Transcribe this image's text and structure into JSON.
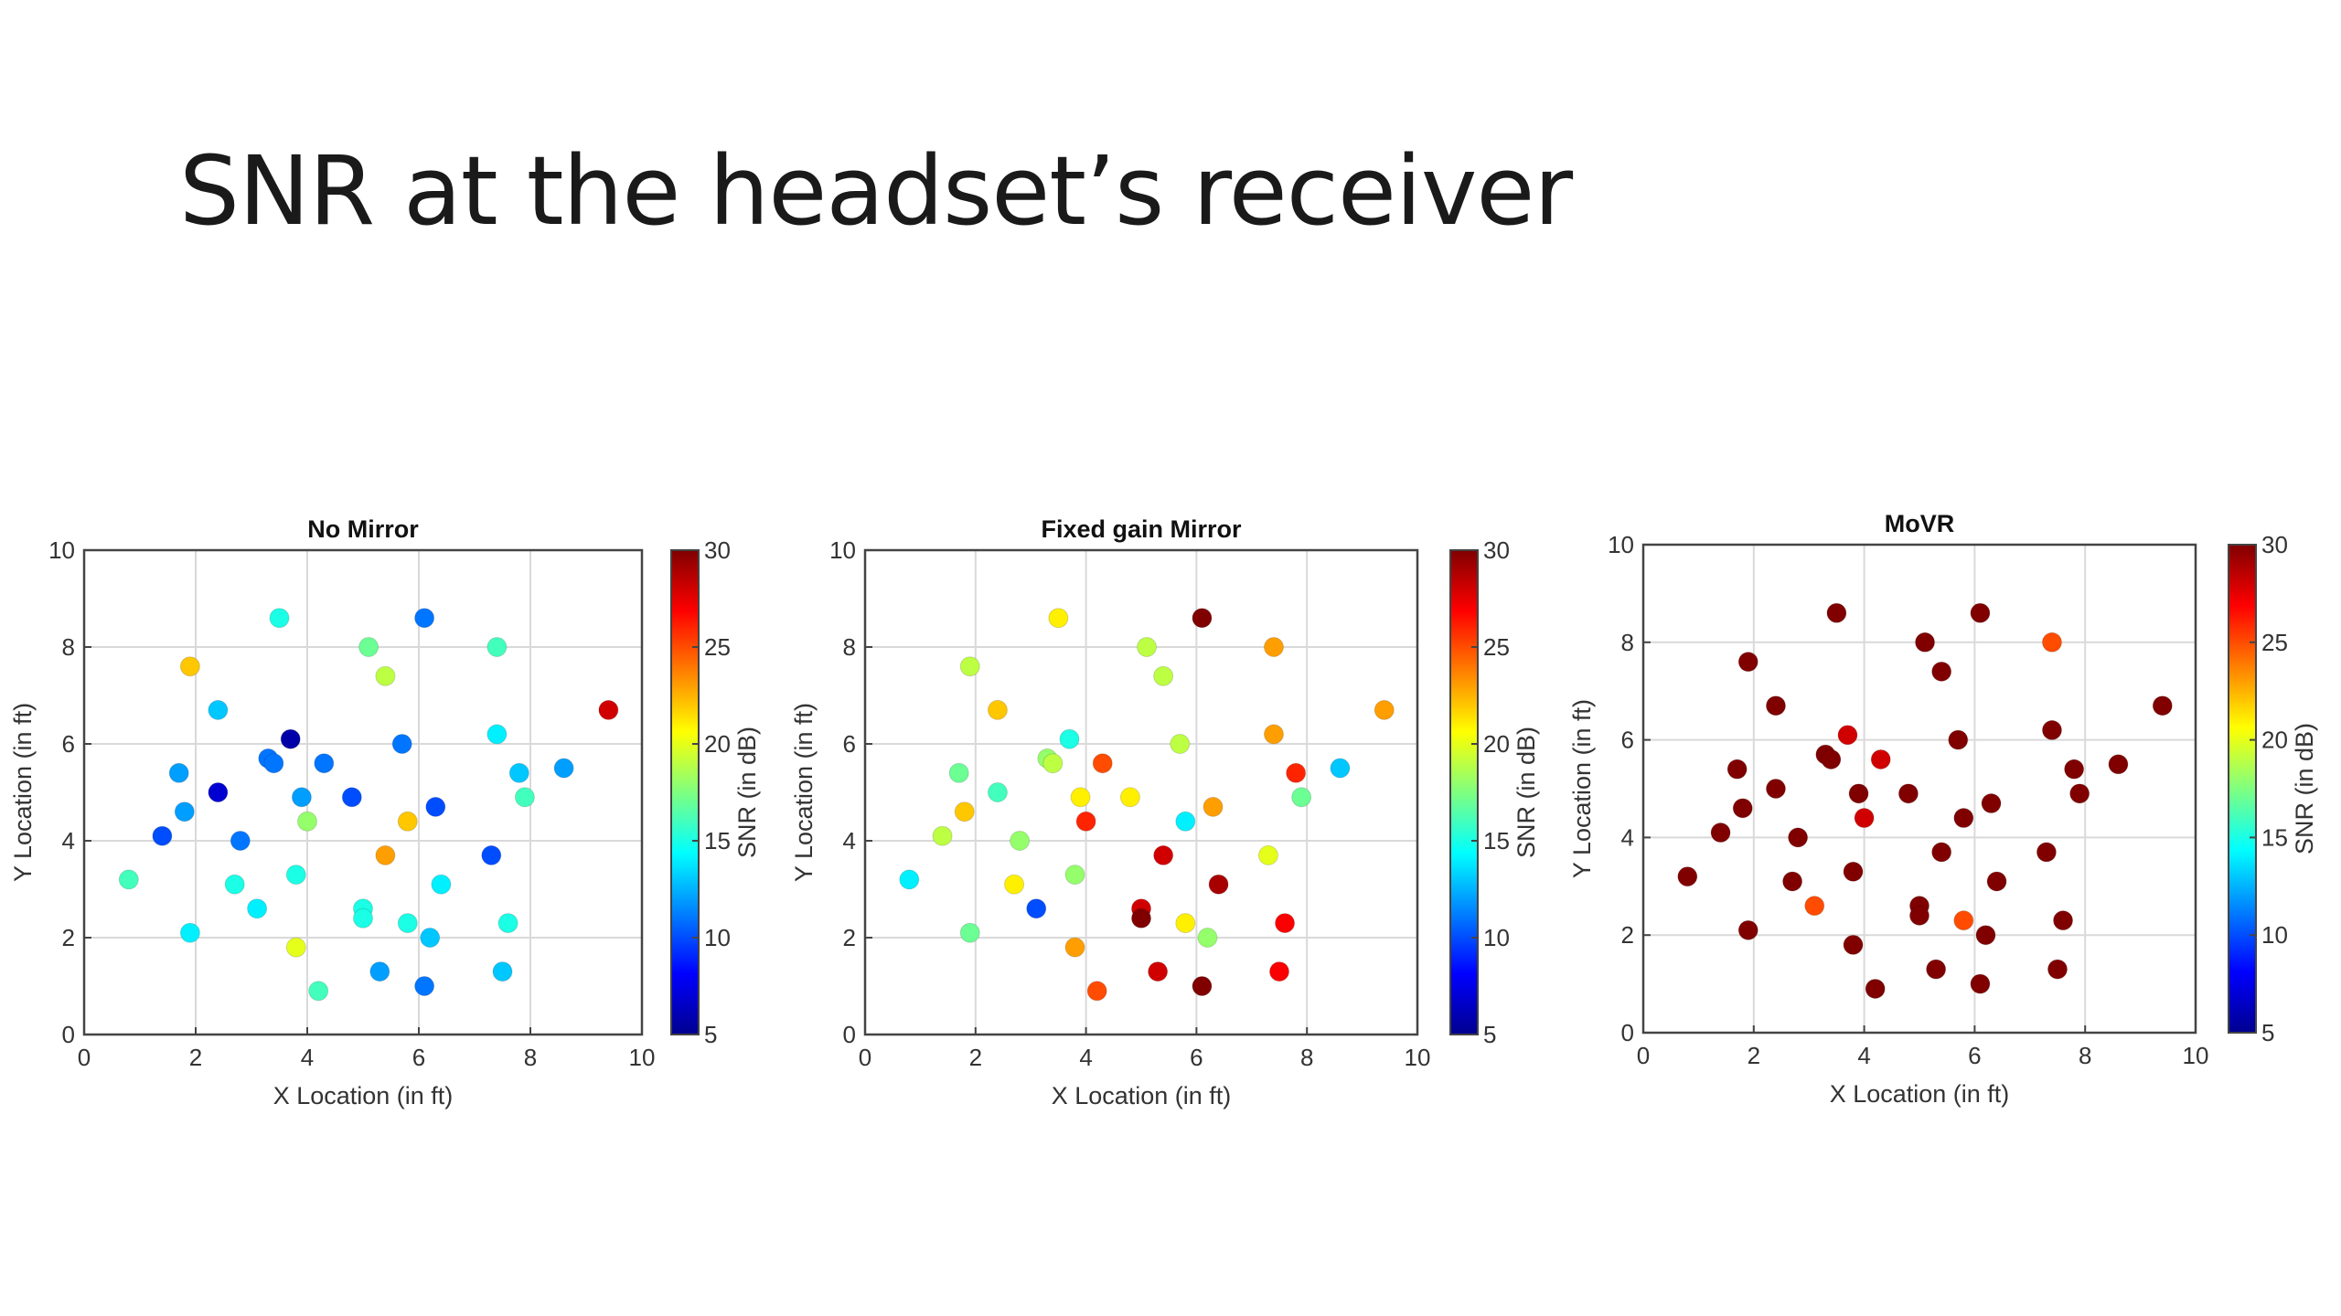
{
  "slide": {
    "title": "SNR at the headset’s receiver"
  },
  "colormap": "jet",
  "chart_data": [
    {
      "type": "scatter",
      "title": "No Mirror",
      "xlabel": "X Location (in ft)",
      "ylabel": "Y Location (in ft)",
      "colorbar_label": "SNR (in dB)",
      "xlim": [
        0,
        10
      ],
      "ylim": [
        0,
        10
      ],
      "clim": [
        5,
        30
      ],
      "xticks": [
        0,
        2,
        4,
        6,
        8,
        10
      ],
      "yticks": [
        0,
        2,
        4,
        6,
        8,
        10
      ],
      "cticks": [
        5,
        10,
        15,
        20,
        25,
        30
      ],
      "grid": true,
      "points": [
        {
          "x": 0.8,
          "y": 3.2,
          "snr": 16
        },
        {
          "x": 1.4,
          "y": 4.1,
          "snr": 10
        },
        {
          "x": 1.7,
          "y": 5.4,
          "snr": 12
        },
        {
          "x": 1.8,
          "y": 4.6,
          "snr": 12
        },
        {
          "x": 1.9,
          "y": 2.1,
          "snr": 14
        },
        {
          "x": 1.9,
          "y": 7.6,
          "snr": 22
        },
        {
          "x": 2.4,
          "y": 6.7,
          "snr": 13
        },
        {
          "x": 2.4,
          "y": 5.0,
          "snr": 7
        },
        {
          "x": 2.7,
          "y": 3.1,
          "snr": 15
        },
        {
          "x": 2.8,
          "y": 4.0,
          "snr": 11
        },
        {
          "x": 3.1,
          "y": 2.6,
          "snr": 14
        },
        {
          "x": 3.3,
          "y": 5.7,
          "snr": 11
        },
        {
          "x": 3.4,
          "y": 5.6,
          "snr": 11
        },
        {
          "x": 3.5,
          "y": 8.6,
          "snr": 15
        },
        {
          "x": 3.7,
          "y": 6.1,
          "snr": 6
        },
        {
          "x": 3.8,
          "y": 3.3,
          "snr": 15
        },
        {
          "x": 3.8,
          "y": 1.8,
          "snr": 20
        },
        {
          "x": 3.9,
          "y": 4.9,
          "snr": 12
        },
        {
          "x": 4.0,
          "y": 4.4,
          "snr": 18
        },
        {
          "x": 4.2,
          "y": 0.9,
          "snr": 16
        },
        {
          "x": 4.3,
          "y": 5.6,
          "snr": 11
        },
        {
          "x": 4.8,
          "y": 4.9,
          "snr": 10
        },
        {
          "x": 5.0,
          "y": 2.6,
          "snr": 15
        },
        {
          "x": 5.0,
          "y": 2.4,
          "snr": 15
        },
        {
          "x": 5.1,
          "y": 8.0,
          "snr": 17
        },
        {
          "x": 5.3,
          "y": 1.3,
          "snr": 12
        },
        {
          "x": 5.4,
          "y": 7.4,
          "snr": 19
        },
        {
          "x": 5.4,
          "y": 3.7,
          "snr": 23
        },
        {
          "x": 5.7,
          "y": 6.0,
          "snr": 11
        },
        {
          "x": 5.8,
          "y": 2.3,
          "snr": 15
        },
        {
          "x": 5.8,
          "y": 4.4,
          "snr": 22
        },
        {
          "x": 6.1,
          "y": 8.6,
          "snr": 11
        },
        {
          "x": 6.1,
          "y": 1.0,
          "snr": 11
        },
        {
          "x": 6.2,
          "y": 2.0,
          "snr": 13
        },
        {
          "x": 6.3,
          "y": 4.7,
          "snr": 10
        },
        {
          "x": 6.4,
          "y": 3.1,
          "snr": 14
        },
        {
          "x": 7.3,
          "y": 3.7,
          "snr": 10
        },
        {
          "x": 7.4,
          "y": 6.2,
          "snr": 14
        },
        {
          "x": 7.4,
          "y": 8.0,
          "snr": 16
        },
        {
          "x": 7.5,
          "y": 1.3,
          "snr": 13
        },
        {
          "x": 7.6,
          "y": 2.3,
          "snr": 15
        },
        {
          "x": 7.8,
          "y": 5.4,
          "snr": 13
        },
        {
          "x": 7.9,
          "y": 4.9,
          "snr": 16
        },
        {
          "x": 8.6,
          "y": 5.5,
          "snr": 12
        },
        {
          "x": 9.4,
          "y": 6.7,
          "snr": 28
        }
      ]
    },
    {
      "type": "scatter",
      "title": "Fixed gain Mirror",
      "xlabel": "X Location (in ft)",
      "ylabel": "Y Location (in ft)",
      "colorbar_label": "SNR (in dB)",
      "xlim": [
        0,
        10
      ],
      "ylim": [
        0,
        10
      ],
      "clim": [
        5,
        30
      ],
      "xticks": [
        0,
        2,
        4,
        6,
        8,
        10
      ],
      "yticks": [
        0,
        2,
        4,
        6,
        8,
        10
      ],
      "cticks": [
        5,
        10,
        15,
        20,
        25,
        30
      ],
      "grid": true,
      "points": [
        {
          "x": 0.8,
          "y": 3.2,
          "snr": 14
        },
        {
          "x": 1.4,
          "y": 4.1,
          "snr": 19
        },
        {
          "x": 1.7,
          "y": 5.4,
          "snr": 17
        },
        {
          "x": 1.8,
          "y": 4.6,
          "snr": 22
        },
        {
          "x": 1.9,
          "y": 2.1,
          "snr": 17
        },
        {
          "x": 1.9,
          "y": 7.6,
          "snr": 19
        },
        {
          "x": 2.4,
          "y": 6.7,
          "snr": 22
        },
        {
          "x": 2.4,
          "y": 5.0,
          "snr": 16
        },
        {
          "x": 2.7,
          "y": 3.1,
          "snr": 21
        },
        {
          "x": 2.8,
          "y": 4.0,
          "snr": 18
        },
        {
          "x": 3.1,
          "y": 2.6,
          "snr": 10
        },
        {
          "x": 3.3,
          "y": 5.7,
          "snr": 18
        },
        {
          "x": 3.4,
          "y": 5.6,
          "snr": 19
        },
        {
          "x": 3.5,
          "y": 8.6,
          "snr": 21
        },
        {
          "x": 3.7,
          "y": 6.1,
          "snr": 15
        },
        {
          "x": 3.8,
          "y": 3.3,
          "snr": 18
        },
        {
          "x": 3.8,
          "y": 1.8,
          "snr": 23
        },
        {
          "x": 3.9,
          "y": 4.9,
          "snr": 21
        },
        {
          "x": 4.0,
          "y": 4.4,
          "snr": 26
        },
        {
          "x": 4.2,
          "y": 0.9,
          "snr": 25
        },
        {
          "x": 4.3,
          "y": 5.6,
          "snr": 25
        },
        {
          "x": 4.8,
          "y": 4.9,
          "snr": 21
        },
        {
          "x": 5.0,
          "y": 2.6,
          "snr": 28
        },
        {
          "x": 5.0,
          "y": 2.4,
          "snr": 30
        },
        {
          "x": 5.1,
          "y": 8.0,
          "snr": 19
        },
        {
          "x": 5.3,
          "y": 1.3,
          "snr": 28
        },
        {
          "x": 5.4,
          "y": 7.4,
          "snr": 19
        },
        {
          "x": 5.4,
          "y": 3.7,
          "snr": 28
        },
        {
          "x": 5.7,
          "y": 6.0,
          "snr": 19
        },
        {
          "x": 5.8,
          "y": 2.3,
          "snr": 21
        },
        {
          "x": 5.8,
          "y": 4.4,
          "snr": 14
        },
        {
          "x": 6.1,
          "y": 8.6,
          "snr": 30
        },
        {
          "x": 6.1,
          "y": 1.0,
          "snr": 30
        },
        {
          "x": 6.2,
          "y": 2.0,
          "snr": 18
        },
        {
          "x": 6.3,
          "y": 4.7,
          "snr": 23
        },
        {
          "x": 6.4,
          "y": 3.1,
          "snr": 29
        },
        {
          "x": 7.3,
          "y": 3.7,
          "snr": 20
        },
        {
          "x": 7.4,
          "y": 6.2,
          "snr": 23
        },
        {
          "x": 7.4,
          "y": 8.0,
          "snr": 23
        },
        {
          "x": 7.5,
          "y": 1.3,
          "snr": 27
        },
        {
          "x": 7.6,
          "y": 2.3,
          "snr": 27
        },
        {
          "x": 7.8,
          "y": 5.4,
          "snr": 26
        },
        {
          "x": 7.9,
          "y": 4.9,
          "snr": 17
        },
        {
          "x": 8.6,
          "y": 5.5,
          "snr": 13
        },
        {
          "x": 9.4,
          "y": 6.7,
          "snr": 23
        }
      ]
    },
    {
      "type": "scatter",
      "title": "MoVR",
      "xlabel": "X Location (in ft)",
      "ylabel": "Y Location (in ft)",
      "colorbar_label": "SNR (in dB)",
      "xlim": [
        0,
        10
      ],
      "ylim": [
        0,
        10
      ],
      "clim": [
        5,
        30
      ],
      "xticks": [
        0,
        2,
        4,
        6,
        8,
        10
      ],
      "yticks": [
        0,
        2,
        4,
        6,
        8,
        10
      ],
      "cticks": [
        5,
        10,
        15,
        20,
        25,
        30
      ],
      "grid": true,
      "points": [
        {
          "x": 0.8,
          "y": 3.2,
          "snr": 30
        },
        {
          "x": 1.4,
          "y": 4.1,
          "snr": 30
        },
        {
          "x": 1.7,
          "y": 5.4,
          "snr": 30
        },
        {
          "x": 1.8,
          "y": 4.6,
          "snr": 30
        },
        {
          "x": 1.9,
          "y": 2.1,
          "snr": 30
        },
        {
          "x": 1.9,
          "y": 7.6,
          "snr": 30
        },
        {
          "x": 2.4,
          "y": 6.7,
          "snr": 30
        },
        {
          "x": 2.4,
          "y": 5.0,
          "snr": 30
        },
        {
          "x": 2.7,
          "y": 3.1,
          "snr": 30
        },
        {
          "x": 2.8,
          "y": 4.0,
          "snr": 30
        },
        {
          "x": 3.1,
          "y": 2.6,
          "snr": 25
        },
        {
          "x": 3.3,
          "y": 5.7,
          "snr": 30
        },
        {
          "x": 3.4,
          "y": 5.6,
          "snr": 30
        },
        {
          "x": 3.5,
          "y": 8.6,
          "snr": 30
        },
        {
          "x": 3.7,
          "y": 6.1,
          "snr": 28
        },
        {
          "x": 3.8,
          "y": 3.3,
          "snr": 30
        },
        {
          "x": 3.8,
          "y": 1.8,
          "snr": 30
        },
        {
          "x": 3.9,
          "y": 4.9,
          "snr": 30
        },
        {
          "x": 4.0,
          "y": 4.4,
          "snr": 28
        },
        {
          "x": 4.2,
          "y": 0.9,
          "snr": 30
        },
        {
          "x": 4.3,
          "y": 5.6,
          "snr": 28
        },
        {
          "x": 4.8,
          "y": 4.9,
          "snr": 30
        },
        {
          "x": 5.0,
          "y": 2.6,
          "snr": 30
        },
        {
          "x": 5.0,
          "y": 2.4,
          "snr": 30
        },
        {
          "x": 5.1,
          "y": 8.0,
          "snr": 30
        },
        {
          "x": 5.3,
          "y": 1.3,
          "snr": 30
        },
        {
          "x": 5.4,
          "y": 7.4,
          "snr": 30
        },
        {
          "x": 5.4,
          "y": 3.7,
          "snr": 30
        },
        {
          "x": 5.7,
          "y": 6.0,
          "snr": 30
        },
        {
          "x": 5.8,
          "y": 2.3,
          "snr": 25
        },
        {
          "x": 5.8,
          "y": 4.4,
          "snr": 30
        },
        {
          "x": 6.1,
          "y": 8.6,
          "snr": 30
        },
        {
          "x": 6.1,
          "y": 1.0,
          "snr": 30
        },
        {
          "x": 6.2,
          "y": 2.0,
          "snr": 30
        },
        {
          "x": 6.3,
          "y": 4.7,
          "snr": 30
        },
        {
          "x": 6.4,
          "y": 3.1,
          "snr": 30
        },
        {
          "x": 7.3,
          "y": 3.7,
          "snr": 30
        },
        {
          "x": 7.4,
          "y": 6.2,
          "snr": 30
        },
        {
          "x": 7.4,
          "y": 8.0,
          "snr": 25
        },
        {
          "x": 7.5,
          "y": 1.3,
          "snr": 30
        },
        {
          "x": 7.6,
          "y": 2.3,
          "snr": 30
        },
        {
          "x": 7.8,
          "y": 5.4,
          "snr": 30
        },
        {
          "x": 7.9,
          "y": 4.9,
          "snr": 30
        },
        {
          "x": 8.6,
          "y": 5.5,
          "snr": 30
        },
        {
          "x": 9.4,
          "y": 6.7,
          "snr": 30
        }
      ]
    }
  ]
}
